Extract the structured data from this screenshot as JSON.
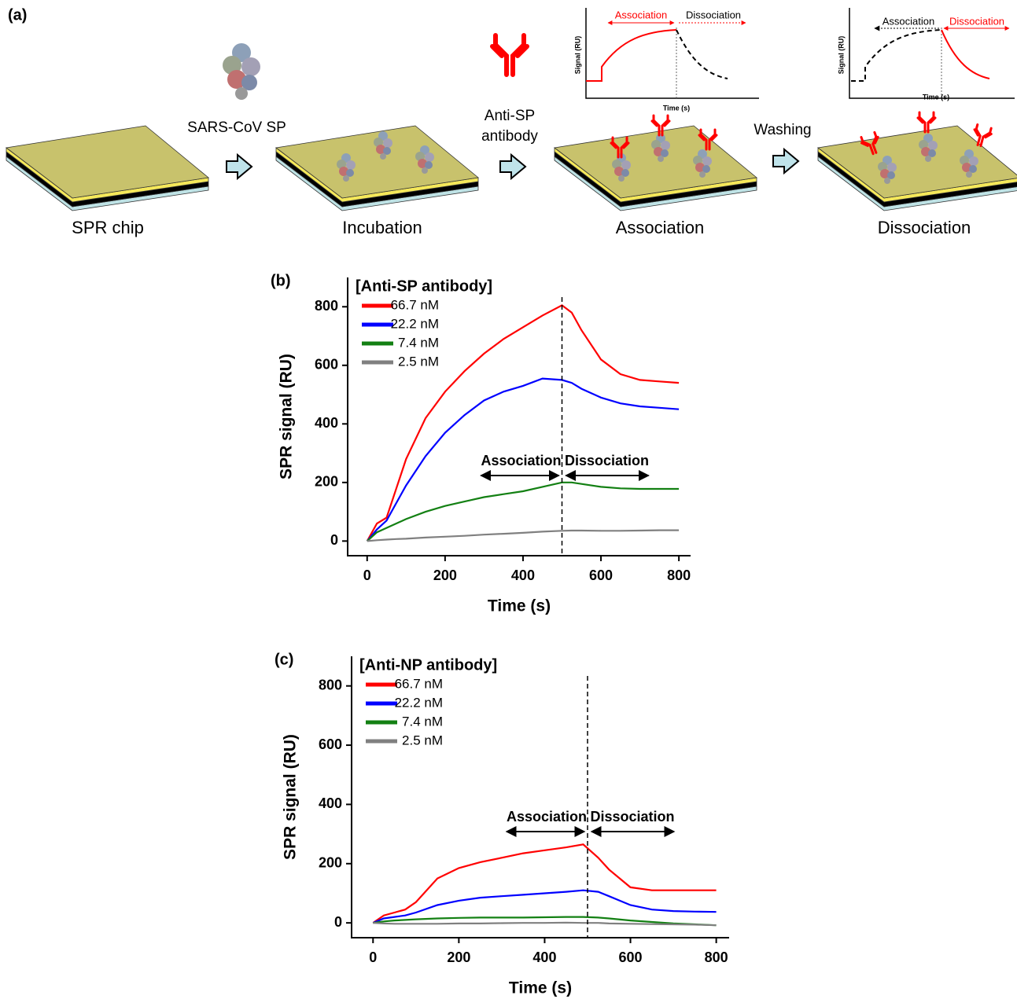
{
  "figure": {
    "panel_label": "(a)",
    "steps": [
      "SPR chip",
      "Incubation",
      "Association",
      "Dissociation"
    ],
    "reagents": [
      "SARS-CoV SP",
      "Anti-SP",
      "antibody",
      "Washing"
    ],
    "insets": [
      {
        "y_label": "Signal (RU)",
        "x_label": "Time (s)",
        "phase_1": "Association",
        "phase_2": "Dissociation"
      },
      {
        "y_label": "Signal (RU)",
        "x_label": "Time (s)",
        "phase_1": "Association",
        "phase_2": "Dissociation"
      }
    ]
  },
  "chart_data": [
    {
      "type": "line",
      "panel_label": "(b)",
      "legend_title": "[Anti-SP antibody]",
      "legend": "upper left",
      "x_label": "Time (s)",
      "y_label": "SPR signal (RU)",
      "x": [
        0,
        25,
        50,
        75,
        100,
        150,
        200,
        250,
        300,
        350,
        400,
        450,
        500,
        525,
        550,
        600,
        650,
        700,
        750,
        800
      ],
      "series": [
        {
          "name": "66.7 nM",
          "color": "#ff0000",
          "values": [
            0,
            60,
            80,
            180,
            280,
            420,
            510,
            580,
            640,
            690,
            730,
            770,
            805,
            780,
            720,
            620,
            570,
            550,
            545,
            540
          ]
        },
        {
          "name": "22.2 nM",
          "color": "#0000ff",
          "values": [
            0,
            40,
            70,
            130,
            190,
            290,
            370,
            430,
            480,
            510,
            530,
            555,
            550,
            540,
            520,
            490,
            470,
            460,
            455,
            450
          ]
        },
        {
          "name": "7.4 nM",
          "color": "#138013",
          "values": [
            0,
            30,
            45,
            60,
            75,
            100,
            120,
            135,
            150,
            160,
            170,
            185,
            200,
            200,
            195,
            185,
            180,
            178,
            178,
            178
          ]
        },
        {
          "name": "2.5 nM",
          "color": "#808080",
          "values": [
            0,
            3,
            5,
            7,
            8,
            12,
            15,
            18,
            22,
            25,
            28,
            32,
            35,
            36,
            36,
            35,
            35,
            36,
            37,
            37
          ]
        }
      ],
      "xlim": [
        -50,
        830
      ],
      "ylim": [
        -50,
        900
      ],
      "xticks": [
        0,
        200,
        400,
        600,
        800
      ],
      "yticks": [
        0,
        200,
        400,
        600,
        800
      ],
      "vline": 500,
      "annotations": [
        "Association",
        "Dissociation"
      ]
    },
    {
      "type": "line",
      "panel_label": "(c)",
      "legend_title": "[Anti-NP antibody]",
      "legend": "upper left",
      "x_label": "Time (s)",
      "y_label": "SPR signal (RU)",
      "x": [
        0,
        25,
        50,
        75,
        100,
        150,
        200,
        250,
        300,
        350,
        400,
        450,
        490,
        525,
        550,
        600,
        650,
        700,
        750,
        800
      ],
      "series": [
        {
          "name": "66.7 nM",
          "color": "#ff0000",
          "values": [
            0,
            25,
            35,
            45,
            70,
            150,
            185,
            205,
            220,
            235,
            245,
            255,
            265,
            220,
            180,
            120,
            110,
            110,
            110,
            110
          ]
        },
        {
          "name": "22.2 nM",
          "color": "#0000ff",
          "values": [
            0,
            15,
            20,
            25,
            35,
            60,
            75,
            85,
            90,
            95,
            100,
            105,
            110,
            105,
            90,
            60,
            45,
            40,
            38,
            37
          ]
        },
        {
          "name": "7.4 nM",
          "color": "#138013",
          "values": [
            0,
            5,
            8,
            10,
            12,
            15,
            17,
            18,
            18,
            18,
            19,
            20,
            20,
            18,
            15,
            8,
            3,
            -2,
            -5,
            -8
          ]
        },
        {
          "name": "2.5 nM",
          "color": "#808080",
          "values": [
            0,
            -2,
            -3,
            -3,
            -3,
            -3,
            -2,
            -2,
            -1,
            0,
            0,
            1,
            0,
            0,
            -2,
            -3,
            -4,
            -5,
            -6,
            -8
          ]
        }
      ],
      "xlim": [
        -50,
        830
      ],
      "ylim": [
        -50,
        900
      ],
      "xticks": [
        0,
        200,
        400,
        600,
        800
      ],
      "yticks": [
        0,
        200,
        400,
        600,
        800
      ],
      "vline": 500,
      "annotations": [
        "Association",
        "Dissociation"
      ]
    }
  ]
}
